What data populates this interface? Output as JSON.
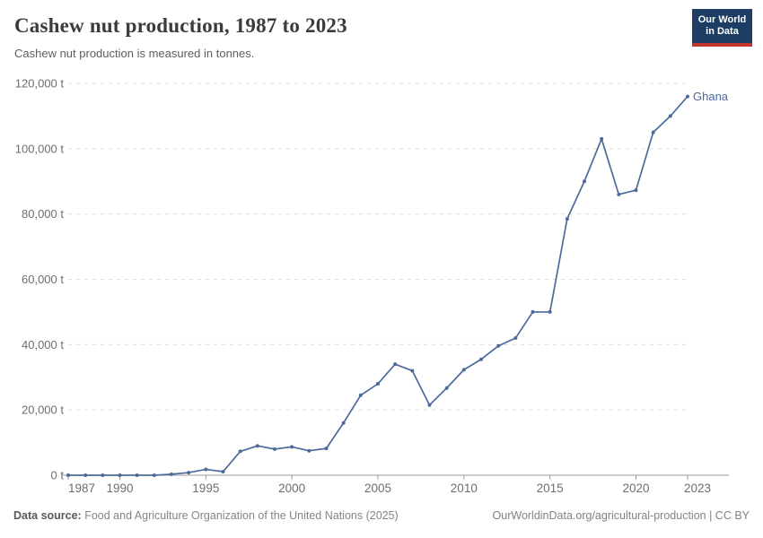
{
  "header": {
    "title": "Cashew nut production, 1987 to 2023",
    "subtitle": "Cashew nut production is measured in tonnes."
  },
  "logo": {
    "line1": "Our World",
    "line2": "in Data",
    "bg_color": "#1d3d63",
    "accent_color": "#c0362c"
  },
  "chart_data": {
    "type": "line",
    "title": "Cashew nut production, 1987 to 2023",
    "ylabel": "",
    "xlabel": "",
    "unit": "t",
    "x": [
      1987,
      1988,
      1989,
      1990,
      1991,
      1992,
      1993,
      1994,
      1995,
      1996,
      1997,
      1998,
      1999,
      2000,
      2001,
      2002,
      2003,
      2004,
      2005,
      2006,
      2007,
      2008,
      2009,
      2010,
      2011,
      2012,
      2013,
      2014,
      2015,
      2016,
      2017,
      2018,
      2019,
      2020,
      2021,
      2022,
      2023
    ],
    "series": [
      {
        "name": "Ghana",
        "color": "#4c6a9c",
        "values": [
          0,
          0,
          0,
          0,
          0,
          0,
          300,
          800,
          1800,
          1100,
          7300,
          9000,
          8000,
          8700,
          7500,
          8200,
          16000,
          24500,
          28000,
          34000,
          32000,
          21500,
          26700,
          32300,
          35500,
          39600,
          42000,
          50000,
          50000,
          78500,
          90000,
          103000,
          86000,
          87300,
          105000,
          110000,
          116000
        ]
      }
    ],
    "xlim": [
      1987,
      2023
    ],
    "ylim": [
      0,
      120000
    ],
    "y_ticks": [
      {
        "value": 0,
        "label": "0 t"
      },
      {
        "value": 20000,
        "label": "20,000 t"
      },
      {
        "value": 40000,
        "label": "40,000 t"
      },
      {
        "value": 60000,
        "label": "60,000 t"
      },
      {
        "value": 80000,
        "label": "80,000 t"
      },
      {
        "value": 100000,
        "label": "100,000 t"
      },
      {
        "value": 120000,
        "label": "120,000 t"
      }
    ],
    "x_ticks": [
      {
        "value": 1987,
        "label": "1987"
      },
      {
        "value": 1990,
        "label": "1990"
      },
      {
        "value": 1995,
        "label": "1995"
      },
      {
        "value": 2000,
        "label": "2000"
      },
      {
        "value": 2005,
        "label": "2005"
      },
      {
        "value": 2010,
        "label": "2010"
      },
      {
        "value": 2015,
        "label": "2015"
      },
      {
        "value": 2020,
        "label": "2020"
      },
      {
        "value": 2023,
        "label": "2023"
      }
    ],
    "grid": "horizontal-dashed",
    "legend_position": "end-of-line",
    "end_label": "Ghana",
    "colors": {
      "grid": "#dcdcdc",
      "axis": "#999999",
      "tick_text": "#6e6e6e",
      "line": "#4c6a9c"
    }
  },
  "footer": {
    "source_label": "Data source:",
    "source_text": " Food and Agriculture Organization of the United Nations (2025)",
    "link_text": "OurWorldinData.org/agricultural-production | CC BY"
  }
}
